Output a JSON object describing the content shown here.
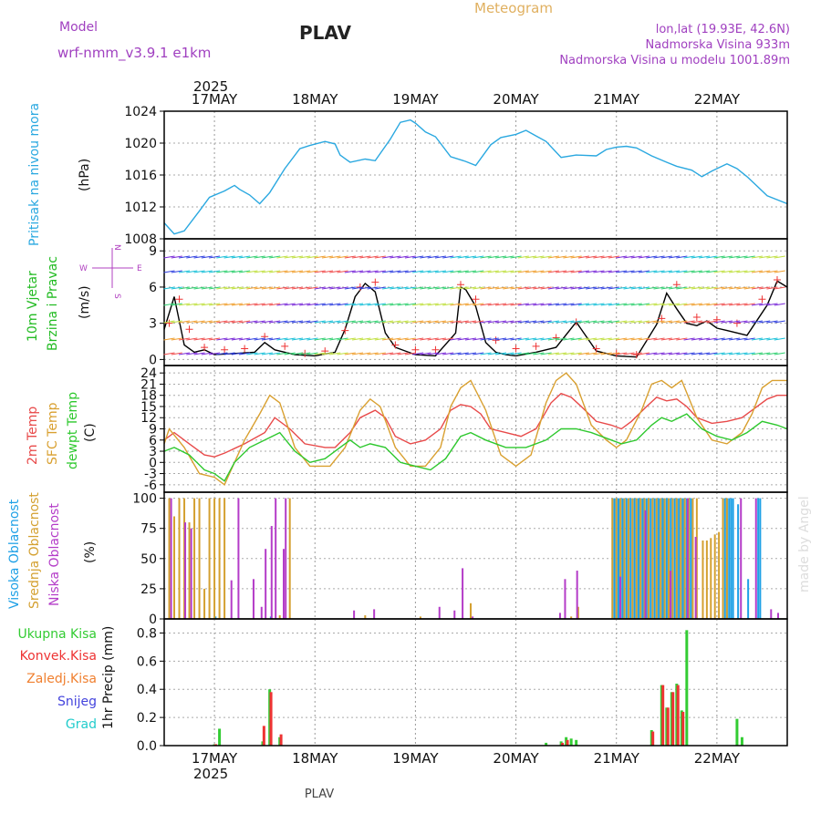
{
  "header": {
    "model_label": "Model",
    "model_name": "wrf-nmm_v3.9.1 e1km",
    "station": "PLAV",
    "title": "Meteogram",
    "lonlat": "lon,lat (19.93E, 42.6N)",
    "elevation": "Nadmorska Visina 933m",
    "model_elevation": "Nadmorska Visina u modelu 1001.89m",
    "year": "2025",
    "footer_station": "PLAV",
    "credit": "made by Angel"
  },
  "colors": {
    "pressure": "#2aa8e0",
    "temp2m": "#e84a4a",
    "sfc_temp": "#d9a030",
    "dewpoint": "#2ec82e",
    "cloud_high": "#1ea0e6",
    "cloud_mid": "#d4a030",
    "cloud_low": "#b43cc8",
    "precip_total": "#33cc33",
    "precip_conv": "#ee3333",
    "precip_frozen": "#f08030",
    "precip_snow": "#4444dd",
    "precip_hail": "#22cccc",
    "wind_label": "#22bb22",
    "compass": "#b040c0",
    "header_purple": "#a040c0",
    "header_gold": "#e0b060"
  },
  "chart_data": [
    {
      "panel": "pressure",
      "type": "line",
      "ylabel_left": "Pritisak na nivou mora",
      "ylabel": "(hPa)",
      "ylim": [
        1008,
        1024
      ],
      "yticks": [
        1008,
        1012,
        1016,
        1020,
        1024
      ],
      "x_day_labels": [
        "17MAY",
        "18MAY",
        "19MAY",
        "20MAY",
        "21MAY",
        "22MAY"
      ],
      "x_start_day": 16.5,
      "x_end_day": 22.7,
      "grid": true,
      "series": [
        {
          "key": "pressure",
          "x": [
            16.5,
            16.6,
            16.7,
            16.85,
            16.95,
            17.1,
            17.2,
            17.25,
            17.35,
            17.45,
            17.55,
            17.7,
            17.85,
            17.95,
            18.1,
            18.2,
            18.25,
            18.35,
            18.5,
            18.6,
            18.75,
            18.85,
            18.95,
            19.0,
            19.1,
            19.2,
            19.35,
            19.5,
            19.6,
            19.75,
            19.85,
            20.0,
            20.1,
            20.2,
            20.3,
            20.45,
            20.6,
            20.8,
            20.9,
            21.0,
            21.1,
            21.2,
            21.35,
            21.5,
            21.6,
            21.75,
            21.85,
            21.95,
            22.1,
            22.2,
            22.3,
            22.4,
            22.5,
            22.7
          ],
          "values": [
            1010,
            1008.6,
            1009,
            1011.5,
            1013.2,
            1014,
            1014.7,
            1014.2,
            1013.5,
            1012.4,
            1013.8,
            1016.8,
            1019.3,
            1019.7,
            1020.2,
            1019.9,
            1018.5,
            1017.6,
            1018,
            1017.8,
            1020.5,
            1022.6,
            1022.9,
            1022.5,
            1021.4,
            1020.8,
            1018.3,
            1017.7,
            1017.2,
            1019.8,
            1020.7,
            1021.1,
            1021.6,
            1020.9,
            1020.2,
            1018.2,
            1018.5,
            1018.4,
            1019.2,
            1019.5,
            1019.6,
            1019.4,
            1018.4,
            1017.6,
            1017.1,
            1016.6,
            1015.8,
            1016.5,
            1017.4,
            1016.8,
            1015.8,
            1014.6,
            1013.4,
            1012.4
          ]
        }
      ]
    },
    {
      "panel": "wind",
      "type": "line",
      "ylabel_left": "10m Vjetar",
      "ylabel_left2": "Brzina i Pravac",
      "ylabel": "(m/s)",
      "compass_labels": {
        "w": "W",
        "e": "E",
        "n": "N",
        "s": "S"
      },
      "ylim": [
        -0.5,
        10
      ],
      "yticks": [
        0,
        3,
        6,
        9
      ],
      "grid": true,
      "series": [
        {
          "key": "wind_speed",
          "x": [
            16.5,
            16.6,
            16.7,
            16.8,
            16.9,
            17.0,
            17.2,
            17.4,
            17.5,
            17.6,
            17.8,
            18.0,
            18.2,
            18.3,
            18.4,
            18.5,
            18.6,
            18.7,
            18.8,
            18.9,
            19.0,
            19.2,
            19.4,
            19.45,
            19.5,
            19.6,
            19.7,
            19.8,
            19.9,
            20.0,
            20.2,
            20.4,
            20.6,
            20.8,
            21.0,
            21.2,
            21.4,
            21.5,
            21.6,
            21.7,
            21.8,
            21.9,
            22.0,
            22.1,
            22.3,
            22.5,
            22.6,
            22.7
          ],
          "values": [
            2.5,
            5.2,
            1.2,
            0.6,
            0.8,
            0.4,
            0.5,
            0.6,
            1.4,
            0.8,
            0.4,
            0.3,
            0.6,
            2.5,
            5.2,
            6.3,
            5.6,
            2.2,
            1.0,
            0.7,
            0.4,
            0.3,
            2.2,
            6.0,
            5.8,
            4.4,
            1.4,
            0.6,
            0.4,
            0.3,
            0.6,
            1.0,
            3.1,
            0.7,
            0.3,
            0.2,
            2.9,
            5.5,
            4.2,
            3.0,
            2.8,
            3.2,
            2.6,
            2.4,
            2.0,
            4.5,
            6.5,
            6.0
          ]
        },
        {
          "key": "gust_markers",
          "x": [
            16.55,
            16.65,
            16.75,
            16.9,
            17.1,
            17.3,
            17.5,
            17.7,
            17.9,
            18.1,
            18.3,
            18.45,
            18.6,
            18.8,
            19.0,
            19.2,
            19.45,
            19.6,
            19.8,
            20.0,
            20.2,
            20.4,
            20.6,
            20.8,
            21.0,
            21.2,
            21.45,
            21.6,
            21.8,
            22.0,
            22.2,
            22.45,
            22.6
          ],
          "values": [
            3.0,
            5.0,
            2.5,
            1.0,
            0.8,
            0.9,
            1.9,
            1.1,
            0.5,
            0.7,
            2.4,
            6.0,
            6.4,
            1.2,
            0.8,
            0.8,
            6.2,
            5.0,
            1.6,
            0.9,
            1.1,
            1.8,
            3.1,
            0.9,
            0.5,
            0.4,
            3.4,
            6.2,
            3.5,
            3.3,
            3.0,
            5.0,
            6.6
          ]
        }
      ]
    },
    {
      "panel": "temperature",
      "type": "line",
      "ylabel_left": "2m Temp",
      "ylabel_left2": "SFC Temp",
      "ylabel_left3": "dewpt Temp",
      "ylabel": "(C)",
      "ylim": [
        -8,
        26
      ],
      "yticks": [
        -6,
        -3,
        0,
        3,
        6,
        9,
        12,
        15,
        18,
        21,
        24
      ],
      "grid": true,
      "series": [
        {
          "key": "temp2m",
          "x": [
            16.5,
            16.6,
            16.75,
            16.9,
            17.0,
            17.1,
            17.3,
            17.5,
            17.6,
            17.75,
            17.9,
            18.1,
            18.2,
            18.35,
            18.45,
            18.6,
            18.7,
            18.8,
            18.95,
            19.1,
            19.25,
            19.35,
            19.45,
            19.55,
            19.65,
            19.75,
            19.9,
            20.05,
            20.2,
            20.35,
            20.45,
            20.55,
            20.65,
            20.8,
            20.95,
            21.05,
            21.15,
            21.3,
            21.4,
            21.5,
            21.6,
            21.7,
            21.8,
            21.95,
            22.1,
            22.25,
            22.35,
            22.5,
            22.6,
            22.7
          ],
          "values": [
            6,
            8,
            5,
            2,
            1.5,
            2.5,
            5,
            8,
            12,
            9,
            5,
            4,
            4,
            8,
            12,
            14,
            12,
            7,
            5,
            6,
            9,
            14,
            15.5,
            15,
            13,
            9,
            8,
            7,
            9,
            16,
            18.5,
            17.5,
            15,
            11,
            10,
            9,
            11,
            15,
            17.5,
            16.5,
            17,
            15,
            12,
            10.5,
            11,
            12,
            14,
            17,
            18,
            18
          ]
        },
        {
          "key": "sfc_temp",
          "x": [
            16.5,
            16.55,
            16.7,
            16.85,
            17.0,
            17.1,
            17.3,
            17.45,
            17.55,
            17.65,
            17.8,
            17.95,
            18.15,
            18.3,
            18.45,
            18.55,
            18.65,
            18.8,
            18.95,
            19.1,
            19.25,
            19.35,
            19.45,
            19.55,
            19.7,
            19.85,
            20.0,
            20.15,
            20.3,
            20.4,
            20.5,
            20.6,
            20.75,
            20.9,
            21.0,
            21.1,
            21.25,
            21.35,
            21.45,
            21.55,
            21.65,
            21.8,
            21.95,
            22.1,
            22.25,
            22.35,
            22.45,
            22.55,
            22.7
          ],
          "values": [
            5,
            9,
            4,
            -3,
            -4,
            -6,
            6,
            13,
            18,
            16,
            4,
            -1,
            -1,
            4,
            14,
            17,
            15,
            4,
            -1,
            -1,
            4,
            15,
            20,
            22,
            14,
            2,
            -1,
            2,
            16,
            22,
            24,
            21,
            10,
            6,
            4,
            6,
            14,
            21,
            22,
            20,
            22,
            12,
            6,
            5,
            8,
            13,
            20,
            22,
            22
          ]
        },
        {
          "key": "dewpoint",
          "x": [
            16.5,
            16.6,
            16.75,
            16.9,
            17.0,
            17.1,
            17.2,
            17.35,
            17.5,
            17.65,
            17.8,
            17.95,
            18.1,
            18.25,
            18.35,
            18.45,
            18.55,
            18.7,
            18.85,
            19.0,
            19.15,
            19.3,
            19.45,
            19.55,
            19.7,
            19.9,
            20.1,
            20.3,
            20.45,
            20.6,
            20.75,
            20.95,
            21.05,
            21.2,
            21.35,
            21.45,
            21.55,
            21.7,
            21.85,
            22.0,
            22.15,
            22.3,
            22.45,
            22.6,
            22.7
          ],
          "values": [
            3,
            4,
            2,
            -2,
            -3,
            -5,
            0,
            4,
            6,
            8,
            3,
            0,
            1,
            4,
            6,
            4,
            5,
            4,
            0,
            -1,
            -2,
            1,
            7,
            8,
            6,
            4,
            4,
            6,
            9,
            9,
            8,
            6,
            5,
            6,
            10,
            12,
            11,
            13,
            9,
            7,
            6,
            8,
            11,
            10,
            9
          ]
        }
      ]
    },
    {
      "panel": "cloud_cover",
      "type": "bar",
      "ylabel_left": "Visoka Oblacnost",
      "ylabel_left2": "Srednja Oblacnost",
      "ylabel_left3": "Niska Oblacnost",
      "ylabel": "(%)",
      "ylim": [
        0,
        105
      ],
      "yticks": [
        0,
        25,
        50,
        75,
        100
      ],
      "grid": true,
      "series": [
        {
          "key": "cloud_high",
          "x": [
            17.0,
            17.55,
            20.95,
            20.97,
            20.99,
            21.01,
            21.03,
            21.05,
            21.07,
            21.09,
            21.11,
            21.13,
            21.15,
            21.17,
            21.19,
            21.21,
            21.23,
            21.25,
            21.27,
            21.29,
            21.31,
            21.33,
            21.35,
            21.37,
            21.39,
            21.41,
            21.43,
            21.45,
            21.47,
            21.49,
            21.51,
            21.53,
            21.55,
            21.57,
            21.59,
            21.61,
            21.63,
            21.65,
            21.67,
            21.69,
            21.71,
            21.73,
            22.05,
            22.07,
            22.09,
            22.11,
            22.13,
            22.15,
            22.2,
            22.3,
            22.4,
            22.42
          ],
          "values": [
            2,
            2,
            100,
            100,
            100,
            100,
            100,
            100,
            100,
            100,
            100,
            100,
            100,
            100,
            100,
            100,
            100,
            100,
            100,
            100,
            100,
            100,
            100,
            100,
            100,
            100,
            100,
            100,
            100,
            100,
            100,
            100,
            100,
            100,
            100,
            100,
            100,
            100,
            100,
            100,
            100,
            100,
            100,
            100,
            100,
            100,
            100,
            100,
            95,
            33,
            100,
            100
          ]
        },
        {
          "key": "cloud_mid",
          "x": [
            16.55,
            16.6,
            16.65,
            16.7,
            16.75,
            16.8,
            16.85,
            16.9,
            16.95,
            17.0,
            17.05,
            17.1,
            17.65,
            17.75,
            18.5,
            19.05,
            19.55,
            20.55,
            20.62,
            20.96,
            21.0,
            21.04,
            21.08,
            21.12,
            21.16,
            21.2,
            21.24,
            21.28,
            21.32,
            21.36,
            21.4,
            21.44,
            21.48,
            21.52,
            21.56,
            21.6,
            21.64,
            21.68,
            21.72,
            21.76,
            21.8,
            21.86,
            21.9,
            21.94,
            21.98,
            22.02,
            22.06,
            22.1
          ],
          "values": [
            100,
            85,
            100,
            100,
            80,
            100,
            100,
            25,
            100,
            100,
            100,
            100,
            3,
            100,
            3,
            2,
            13,
            2,
            10,
            100,
            100,
            100,
            100,
            100,
            100,
            100,
            100,
            100,
            100,
            100,
            100,
            100,
            100,
            100,
            100,
            100,
            100,
            100,
            100,
            100,
            100,
            65,
            65,
            67,
            70,
            72,
            100,
            100
          ]
        },
        {
          "key": "cloud_low",
          "x": [
            16.58,
            16.72,
            16.78,
            17.18,
            17.25,
            17.4,
            17.48,
            17.52,
            17.58,
            17.62,
            17.7,
            17.72,
            18.4,
            18.6,
            19.25,
            19.4,
            19.48,
            19.58,
            20.45,
            20.5,
            20.62,
            21.05,
            21.3,
            21.55,
            21.72,
            21.8,
            22.25,
            22.4,
            22.55,
            22.62
          ],
          "values": [
            100,
            80,
            75,
            32,
            100,
            33,
            10,
            58,
            77,
            100,
            58,
            100,
            7,
            8,
            10,
            7,
            42,
            2,
            5,
            33,
            40,
            35,
            90,
            40,
            100,
            68,
            100,
            100,
            8,
            5
          ]
        }
      ]
    },
    {
      "panel": "precipitation",
      "type": "bar",
      "ylabel": "1hr Precip (mm)",
      "legend": [
        "Ukupna Kisa",
        "Konvek.Kisa",
        "Zaledj.Kisa",
        "Snijeg",
        "Grad"
      ],
      "ylim": [
        0,
        0.9
      ],
      "yticks": [
        0,
        0.2,
        0.4,
        0.6,
        0.8
      ],
      "grid": true,
      "series": [
        {
          "key": "precip_total",
          "x": [
            17.0,
            17.05,
            17.48,
            17.55,
            17.65,
            20.3,
            20.45,
            20.5,
            20.55,
            20.6,
            21.35,
            21.45,
            21.5,
            21.55,
            21.6,
            21.65,
            21.7,
            22.2,
            22.25
          ],
          "values": [
            0.01,
            0.12,
            0.03,
            0.4,
            0.06,
            0.02,
            0.03,
            0.06,
            0.05,
            0.04,
            0.11,
            0.43,
            0.27,
            0.38,
            0.44,
            0.25,
            0.82,
            0.19,
            0.06
          ]
        },
        {
          "key": "precip_conv",
          "x": [
            17.0,
            17.48,
            17.55,
            17.65,
            20.45,
            20.5,
            21.35,
            21.45,
            21.5,
            21.55,
            21.6,
            21.65
          ],
          "values": [
            0.01,
            0.14,
            0.38,
            0.08,
            0.02,
            0.04,
            0.1,
            0.43,
            0.27,
            0.38,
            0.43,
            0.24
          ]
        }
      ]
    }
  ]
}
